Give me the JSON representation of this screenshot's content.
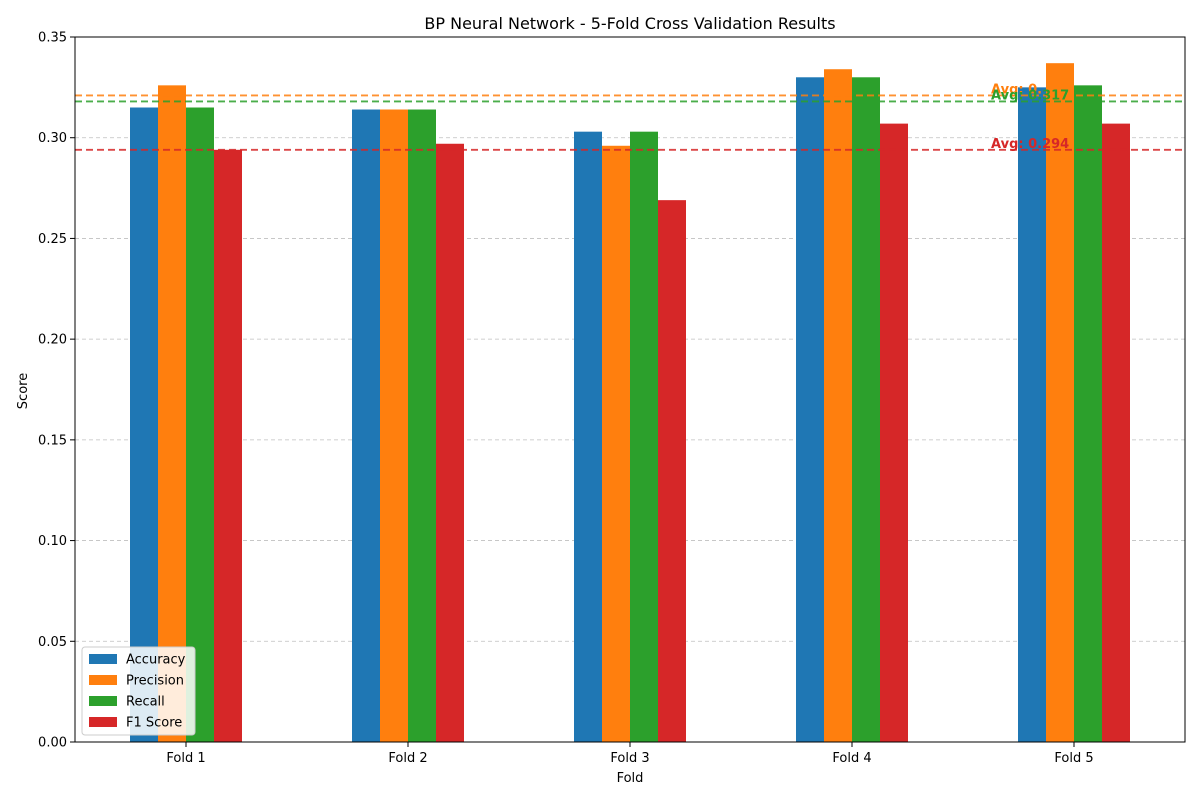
{
  "chart_data": {
    "type": "bar",
    "title": "BP Neural Network - 5-Fold Cross Validation Results",
    "xlabel": "Fold",
    "ylabel": "Score",
    "categories": [
      "Fold 1",
      "Fold 2",
      "Fold 3",
      "Fold 4",
      "Fold 5"
    ],
    "ylim": [
      0,
      0.35
    ],
    "yticks": [
      "0.00",
      "0.05",
      "0.10",
      "0.15",
      "0.20",
      "0.25",
      "0.30",
      "0.35"
    ],
    "grid": "horizontal dashed",
    "legend_position": "bottom-left",
    "series": [
      {
        "name": "Accuracy",
        "color": "#1f77b4",
        "values": [
          0.315,
          0.314,
          0.303,
          0.33,
          0.325
        ]
      },
      {
        "name": "Precision",
        "color": "#ff7f0e",
        "values": [
          0.326,
          0.314,
          0.296,
          0.334,
          0.337
        ]
      },
      {
        "name": "Recall",
        "color": "#2ca02c",
        "values": [
          0.315,
          0.314,
          0.303,
          0.33,
          0.326
        ]
      },
      {
        "name": "F1 Score",
        "color": "#d62728",
        "values": [
          0.294,
          0.297,
          0.269,
          0.307,
          0.307
        ]
      }
    ],
    "average_lines": [
      {
        "series": "Precision",
        "value": 0.321,
        "label": "Avg: 0.",
        "color": "#ff7f0e"
      },
      {
        "series": "Recall",
        "value": 0.318,
        "label": "Avg: 0.317",
        "color": "#2ca02c"
      },
      {
        "series": "F1 Score",
        "value": 0.294,
        "label": "Avg: 0.294",
        "color": "#d62728"
      }
    ]
  }
}
